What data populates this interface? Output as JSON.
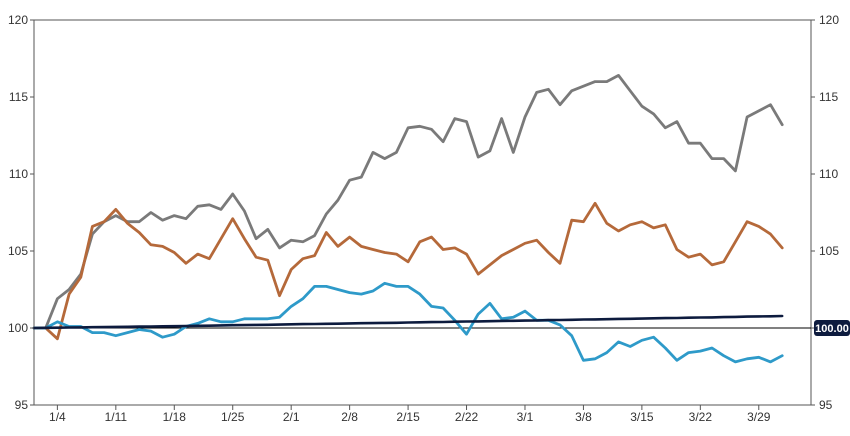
{
  "chart_data": {
    "type": "line",
    "title": "",
    "xlabel": "",
    "ylabel": "",
    "ylim": [
      95,
      120
    ],
    "yticks": [
      95,
      100,
      105,
      110,
      115,
      120
    ],
    "right_axis_ticks": [
      95,
      100,
      105,
      110,
      115,
      120
    ],
    "grid": false,
    "x_tick_labels": [
      {
        "label": "1/4",
        "index": 2
      },
      {
        "label": "1/11",
        "index": 7
      },
      {
        "label": "1/18",
        "index": 12
      },
      {
        "label": "1/25",
        "index": 17
      },
      {
        "label": "2/1",
        "index": 22
      },
      {
        "label": "2/8",
        "index": 27
      },
      {
        "label": "2/15",
        "index": 32
      },
      {
        "label": "2/22",
        "index": 37
      },
      {
        "label": "3/1",
        "index": 42
      },
      {
        "label": "3/8",
        "index": 47
      },
      {
        "label": "3/15",
        "index": 52
      },
      {
        "label": "3/22",
        "index": 57
      },
      {
        "label": "3/29",
        "index": 62
      }
    ],
    "reference_line": {
      "value": 100,
      "label": "100.00",
      "color": "#0d1b3e"
    },
    "series": [
      {
        "color": "#7a7a7a",
        "values": [
          100,
          100,
          101.9,
          102.5,
          103.5,
          106.1,
          106.9,
          107.3,
          106.9,
          106.9,
          107.5,
          107.0,
          107.3,
          107.1,
          107.9,
          108.0,
          107.7,
          108.7,
          107.6,
          105.8,
          106.4,
          105.2,
          105.7,
          105.6,
          106.0,
          107.4,
          108.3,
          109.6,
          109.8,
          111.4,
          111.0,
          111.4,
          113.0,
          113.1,
          112.9,
          112.1,
          113.6,
          113.4,
          111.1,
          111.5,
          113.6,
          111.4,
          113.7,
          115.3,
          115.5,
          114.5,
          115.4,
          115.7,
          116.0,
          116.0,
          116.4,
          115.4,
          114.4,
          113.9,
          113.0,
          113.4,
          112.0,
          112.0,
          111.0,
          111.0,
          110.2,
          113.7,
          114.1,
          114.5,
          113.2
        ]
      },
      {
        "color": "#b5693a",
        "values": [
          100,
          100,
          99.3,
          102.2,
          103.3,
          106.6,
          106.9,
          107.7,
          106.8,
          106.2,
          105.4,
          105.3,
          104.9,
          104.2,
          104.8,
          104.5,
          105.8,
          107.1,
          105.8,
          104.6,
          104.4,
          102.1,
          103.8,
          104.5,
          104.7,
          106.2,
          105.3,
          105.9,
          105.3,
          105.1,
          104.9,
          104.8,
          104.3,
          105.6,
          105.9,
          105.1,
          105.2,
          104.8,
          103.5,
          104.1,
          104.7,
          105.1,
          105.5,
          105.7,
          104.9,
          104.2,
          107.0,
          106.9,
          108.1,
          106.8,
          106.3,
          106.7,
          106.9,
          106.5,
          106.7,
          105.1,
          104.6,
          104.8,
          104.1,
          104.3,
          105.6,
          106.9,
          106.6,
          106.1,
          105.2
        ]
      },
      {
        "color": "#2e9ac9",
        "values": [
          100,
          100,
          100.4,
          100.1,
          100.1,
          99.7,
          99.7,
          99.5,
          99.7,
          99.9,
          99.8,
          99.4,
          99.6,
          100.1,
          100.3,
          100.6,
          100.4,
          100.4,
          100.6,
          100.6,
          100.6,
          100.7,
          101.4,
          101.9,
          102.7,
          102.7,
          102.5,
          102.3,
          102.2,
          102.4,
          102.9,
          102.7,
          102.7,
          102.2,
          101.4,
          101.3,
          100.5,
          99.6,
          100.9,
          101.6,
          100.6,
          100.7,
          101.1,
          100.5,
          100.5,
          100.2,
          99.5,
          97.9,
          98.0,
          98.4,
          99.1,
          98.8,
          99.2,
          99.4,
          98.7,
          97.9,
          98.4,
          98.5,
          98.7,
          98.2,
          97.8,
          98.0,
          98.1,
          97.8,
          98.2
        ]
      },
      {
        "color": "#0d1b3e",
        "values": [
          100,
          100.01,
          100.02,
          100.03,
          100.04,
          100.05,
          100.06,
          100.07,
          100.08,
          100.09,
          100.1,
          100.11,
          100.12,
          100.13,
          100.14,
          100.15,
          100.17,
          100.18,
          100.19,
          100.2,
          100.21,
          100.22,
          100.24,
          100.25,
          100.26,
          100.27,
          100.28,
          100.3,
          100.31,
          100.32,
          100.33,
          100.34,
          100.36,
          100.37,
          100.38,
          100.39,
          100.41,
          100.42,
          100.43,
          100.44,
          100.46,
          100.47,
          100.48,
          100.49,
          100.51,
          100.52,
          100.53,
          100.55,
          100.56,
          100.57,
          100.59,
          100.6,
          100.61,
          100.63,
          100.64,
          100.65,
          100.67,
          100.68,
          100.69,
          100.71,
          100.72,
          100.74,
          100.75,
          100.76,
          100.78
        ]
      }
    ]
  }
}
